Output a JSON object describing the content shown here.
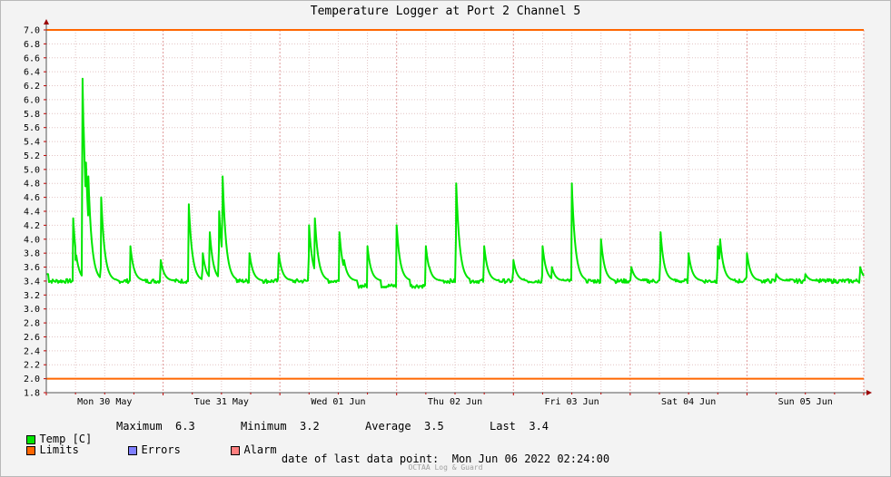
{
  "chart_data": {
    "type": "line",
    "title": "Temperature Logger at Port 2 Channel 5",
    "ylim": [
      1.8,
      7.0
    ],
    "y_ticks": [
      "1.8",
      "2.0",
      "2.2",
      "2.4",
      "2.6",
      "2.8",
      "3.0",
      "3.2",
      "3.4",
      "3.6",
      "3.8",
      "4.0",
      "4.2",
      "4.4",
      "4.6",
      "4.8",
      "5.0",
      "5.2",
      "5.4",
      "5.6",
      "5.8",
      "6.0",
      "6.2",
      "6.4",
      "6.6",
      "6.8",
      "7.0"
    ],
    "x_range_days": [
      0,
      7
    ],
    "x_ticks": [
      {
        "label": "Mon 30 May",
        "day": 0.5
      },
      {
        "label": "Tue 31 May",
        "day": 1.5
      },
      {
        "label": "Wed 01 Jun",
        "day": 2.5
      },
      {
        "label": "Thu 02 Jun",
        "day": 3.5
      },
      {
        "label": "Fri 03 Jun",
        "day": 4.5
      },
      {
        "label": "Sat 04 Jun",
        "day": 5.5
      },
      {
        "label": "Sun 05 Jun",
        "day": 6.5
      }
    ],
    "grid": true,
    "limits": {
      "upper": 7.0,
      "lower": 2.0,
      "color": "#ff6600"
    },
    "series": [
      {
        "name": "Temp [C]",
        "color": "#00e600",
        "baseline": 3.4,
        "peaks": [
          {
            "day": 0.23,
            "value": 4.3
          },
          {
            "day": 0.25,
            "value": 3.7
          },
          {
            "day": 0.31,
            "value": 6.3
          },
          {
            "day": 0.32,
            "value": 5.6
          },
          {
            "day": 0.34,
            "value": 5.1
          },
          {
            "day": 0.36,
            "value": 4.9
          },
          {
            "day": 0.47,
            "value": 4.6
          },
          {
            "day": 0.72,
            "value": 3.9
          },
          {
            "day": 0.98,
            "value": 3.7
          },
          {
            "day": 1.22,
            "value": 4.5
          },
          {
            "day": 1.34,
            "value": 3.8
          },
          {
            "day": 1.4,
            "value": 4.1
          },
          {
            "day": 1.48,
            "value": 4.4
          },
          {
            "day": 1.51,
            "value": 4.9
          },
          {
            "day": 1.74,
            "value": 3.8
          },
          {
            "day": 1.99,
            "value": 3.8
          },
          {
            "day": 2.25,
            "value": 4.2
          },
          {
            "day": 2.3,
            "value": 4.3
          },
          {
            "day": 2.51,
            "value": 4.1
          },
          {
            "day": 2.55,
            "value": 3.7
          },
          {
            "day": 2.75,
            "value": 3.9
          },
          {
            "day": 3.0,
            "value": 4.2
          },
          {
            "day": 3.25,
            "value": 3.9
          },
          {
            "day": 3.28,
            "value": 3.6
          },
          {
            "day": 3.51,
            "value": 4.8
          },
          {
            "day": 3.75,
            "value": 3.9
          },
          {
            "day": 4.0,
            "value": 3.7
          },
          {
            "day": 4.25,
            "value": 3.9
          },
          {
            "day": 4.33,
            "value": 3.6
          },
          {
            "day": 4.5,
            "value": 4.8
          },
          {
            "day": 4.75,
            "value": 4.0
          },
          {
            "day": 5.01,
            "value": 3.6
          },
          {
            "day": 5.26,
            "value": 4.1
          },
          {
            "day": 5.5,
            "value": 3.8
          },
          {
            "day": 5.75,
            "value": 3.9
          },
          {
            "day": 5.77,
            "value": 4.0
          },
          {
            "day": 6.0,
            "value": 3.8
          },
          {
            "day": 6.25,
            "value": 3.5
          },
          {
            "day": 6.5,
            "value": 3.5
          },
          {
            "day": 6.97,
            "value": 3.6
          }
        ]
      }
    ]
  },
  "legend": {
    "temp_label": "Temp [C]",
    "temp_color": "#00e600",
    "limits_label": "Limits",
    "limits_color": "#ff6600",
    "errors_label": "Errors",
    "errors_color": "#7f7fff",
    "alarm_label": "Alarm",
    "alarm_color": "#ff7f7f"
  },
  "stats": {
    "maximum_label": "Maximum",
    "maximum_value": "6.3",
    "minimum_label": "Minimum",
    "minimum_value": "3.2",
    "average_label": "Average",
    "average_value": "3.5",
    "last_label": "Last",
    "last_value": "3.4"
  },
  "footer": {
    "last_point_label": "date of last data point:",
    "last_point_value": "Mon Jun 06 2022 02:24:00",
    "brand": "OCTAA Log & Guard"
  }
}
